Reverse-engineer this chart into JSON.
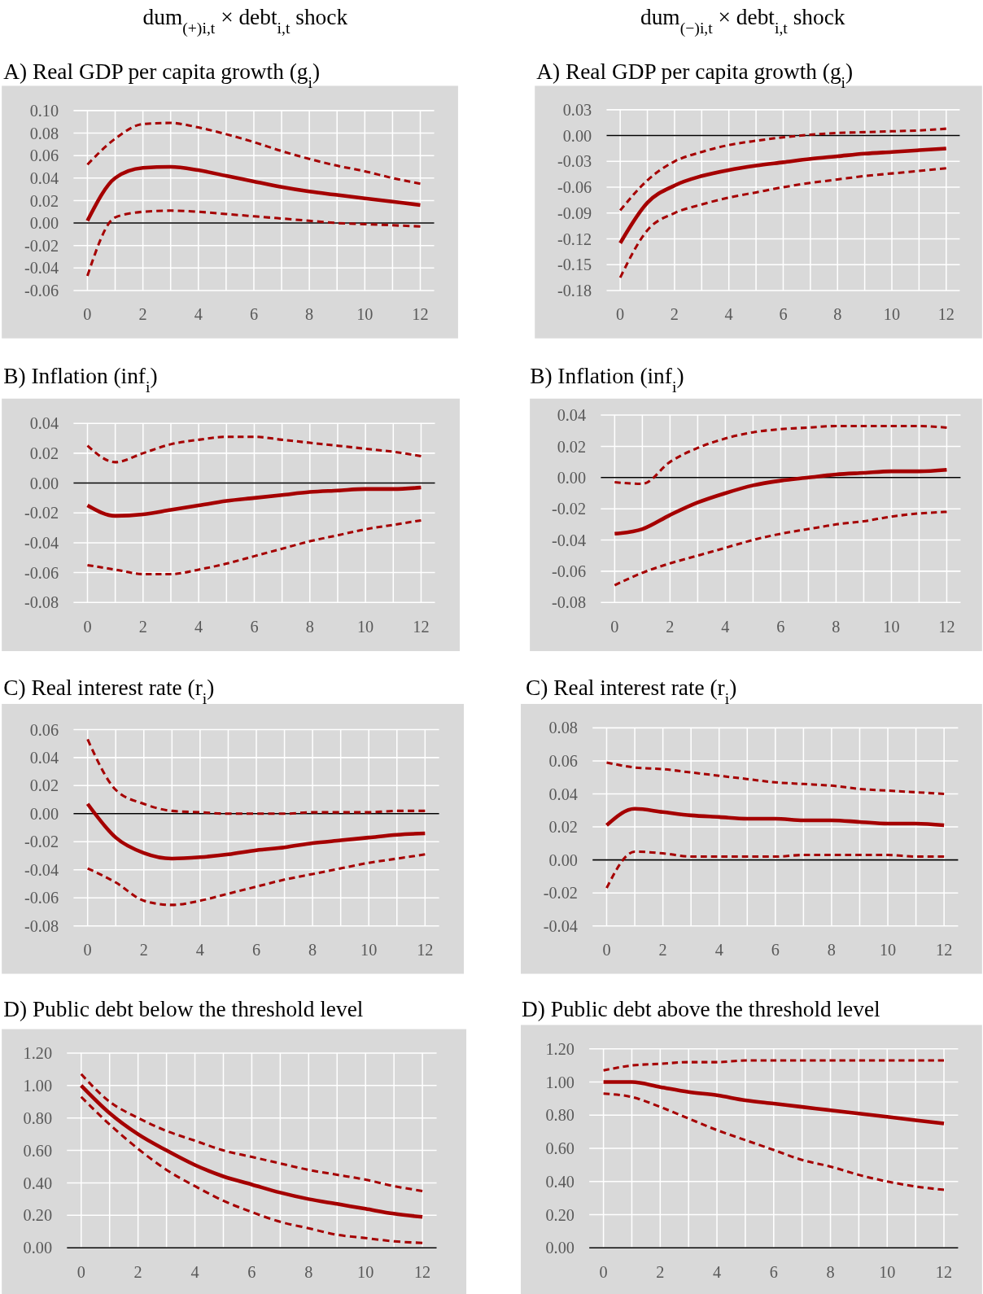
{
  "chart_data": [
    {
      "type": "line",
      "title": "A) Real GDP per capita growth (g$_{i}$)",
      "annotations": [
        "dum$_{(+)i,t}$ × debt$_{i,t}$ shock"
      ],
      "x": [
        0,
        1,
        2,
        3,
        4,
        5,
        6,
        7,
        8,
        9,
        10,
        11,
        12
      ],
      "xlim": [
        -0.5,
        12.5
      ],
      "xticks": [
        0,
        {
          "value": 1,
          "label": null
        },
        2,
        {
          "value": 3,
          "label": null
        },
        4,
        {
          "value": 5,
          "label": null
        },
        6,
        {
          "value": 7,
          "label": null
        },
        8,
        {
          "value": 9,
          "label": null
        },
        10,
        {
          "value": 11,
          "label": null
        },
        12
      ],
      "ylim": [
        -0.06,
        0.1
      ],
      "yticks": [
        {
          "value": -0.06,
          "label": "-0.06"
        },
        {
          "value": -0.04,
          "label": "-0.04"
        },
        {
          "value": -0.02,
          "label": "-0.02"
        },
        {
          "value": 0,
          "label": "0.00"
        },
        {
          "value": 0.02,
          "label": "0.02"
        },
        {
          "value": 0.04,
          "label": "0.04"
        },
        {
          "value": 0.06,
          "label": "0.06"
        },
        {
          "value": 0.08,
          "label": "0.08"
        },
        {
          "value": 0.1,
          "label": "0.10"
        }
      ],
      "grid": true,
      "series": [
        {
          "color": "#a50000",
          "line_style": "solid",
          "values": [
            0.002,
            0.04,
            0.049,
            0.05,
            0.047,
            0.042,
            0.037,
            0.032,
            0.028,
            0.025,
            0.022,
            0.019,
            0.016
          ]
        },
        {
          "color": "#a50000",
          "line_style": "dashed",
          "values": [
            0.052,
            0.075,
            0.088,
            0.089,
            0.085,
            0.079,
            0.072,
            0.064,
            0.057,
            0.051,
            0.046,
            0.04,
            0.035
          ]
        },
        {
          "color": "#a50000",
          "line_style": "dashed",
          "values": [
            -0.047,
            0.005,
            0.01,
            0.011,
            0.01,
            0.008,
            0.006,
            0.004,
            0.002,
            0.0,
            -0.001,
            -0.002,
            -0.003
          ]
        }
      ]
    },
    {
      "type": "line",
      "title": "A) Real GDP per capita growth (g$_{i}$)",
      "annotations": [
        "dum$_{(−)i,t}$ × debt$_{i,t}$ shock"
      ],
      "x": [
        0,
        1,
        2,
        3,
        4,
        5,
        6,
        7,
        8,
        9,
        10,
        11,
        12
      ],
      "xlim": [
        -0.5,
        12.5
      ],
      "xticks": [
        0,
        {
          "value": 1,
          "label": null
        },
        2,
        {
          "value": 3,
          "label": null
        },
        4,
        {
          "value": 5,
          "label": null
        },
        6,
        {
          "value": 7,
          "label": null
        },
        8,
        {
          "value": 9,
          "label": null
        },
        10,
        {
          "value": 11,
          "label": null
        },
        12
      ],
      "ylim": [
        -0.18,
        0.03
      ],
      "yticks": [
        {
          "value": -0.18,
          "label": "-0.18"
        },
        {
          "value": -0.15,
          "label": "-0.15"
        },
        {
          "value": -0.12,
          "label": "-0.12"
        },
        {
          "value": -0.09,
          "label": "-0.09"
        },
        {
          "value": -0.06,
          "label": "-0.06"
        },
        {
          "value": -0.03,
          "label": "-0.03"
        },
        {
          "value": 0,
          "label": "0.00"
        },
        {
          "value": 0.03,
          "label": "0.03"
        }
      ],
      "grid": true,
      "series": [
        {
          "color": "#a50000",
          "line_style": "solid",
          "values": [
            -0.125,
            -0.078,
            -0.058,
            -0.047,
            -0.04,
            -0.035,
            -0.031,
            -0.027,
            -0.024,
            -0.021,
            -0.019,
            -0.017,
            -0.015
          ]
        },
        {
          "color": "#a50000",
          "line_style": "dashed",
          "values": [
            -0.087,
            -0.052,
            -0.03,
            -0.019,
            -0.011,
            -0.006,
            -0.002,
            0.001,
            0.003,
            0.004,
            0.005,
            0.006,
            0.008
          ]
        },
        {
          "color": "#a50000",
          "line_style": "dashed",
          "values": [
            -0.165,
            -0.11,
            -0.09,
            -0.08,
            -0.072,
            -0.066,
            -0.06,
            -0.055,
            -0.051,
            -0.047,
            -0.044,
            -0.041,
            -0.038
          ]
        }
      ]
    },
    {
      "type": "line",
      "title": "B) Inflation (inf$_{i}$)",
      "x": [
        0,
        1,
        2,
        3,
        4,
        5,
        6,
        7,
        8,
        9,
        10,
        11,
        12
      ],
      "xlim": [
        -0.5,
        12.5
      ],
      "xticks": [
        0,
        {
          "value": 1,
          "label": null
        },
        2,
        {
          "value": 3,
          "label": null
        },
        4,
        {
          "value": 5,
          "label": null
        },
        6,
        {
          "value": 7,
          "label": null
        },
        8,
        {
          "value": 9,
          "label": null
        },
        10,
        {
          "value": 11,
          "label": null
        },
        12
      ],
      "ylim": [
        -0.08,
        0.04
      ],
      "yticks": [
        {
          "value": -0.08,
          "label": "-0.08"
        },
        {
          "value": -0.06,
          "label": "-0.06"
        },
        {
          "value": -0.04,
          "label": "-0.04"
        },
        {
          "value": -0.02,
          "label": "-0.02"
        },
        {
          "value": 0,
          "label": "0.00"
        },
        {
          "value": 0.02,
          "label": "0.02"
        },
        {
          "value": 0.04,
          "label": "0.04"
        }
      ],
      "grid": true,
      "series": [
        {
          "color": "#a50000",
          "line_style": "solid",
          "values": [
            -0.015,
            -0.022,
            -0.021,
            -0.018,
            -0.015,
            -0.012,
            -0.01,
            -0.008,
            -0.006,
            -0.005,
            -0.004,
            -0.004,
            -0.003
          ]
        },
        {
          "color": "#a50000",
          "line_style": "dashed",
          "values": [
            0.025,
            0.014,
            0.02,
            0.026,
            0.029,
            0.031,
            0.031,
            0.029,
            0.027,
            0.025,
            0.023,
            0.021,
            0.018
          ]
        },
        {
          "color": "#a50000",
          "line_style": "dashed",
          "values": [
            -0.055,
            -0.058,
            -0.061,
            -0.061,
            -0.058,
            -0.054,
            -0.049,
            -0.044,
            -0.039,
            -0.035,
            -0.031,
            -0.028,
            -0.025
          ]
        }
      ]
    },
    {
      "type": "line",
      "title": "B) Inflation (inf$_{i}$)",
      "x": [
        0,
        1,
        2,
        3,
        4,
        5,
        6,
        7,
        8,
        9,
        10,
        11,
        12
      ],
      "xlim": [
        -0.5,
        12.5
      ],
      "xticks": [
        0,
        {
          "value": 1,
          "label": null
        },
        2,
        {
          "value": 3,
          "label": null
        },
        4,
        {
          "value": 5,
          "label": null
        },
        6,
        {
          "value": 7,
          "label": null
        },
        8,
        {
          "value": 9,
          "label": null
        },
        10,
        {
          "value": 11,
          "label": null
        },
        12
      ],
      "ylim": [
        -0.08,
        0.04
      ],
      "yticks": [
        {
          "value": -0.08,
          "label": "-0.08"
        },
        {
          "value": -0.06,
          "label": "-0.06"
        },
        {
          "value": -0.04,
          "label": "-0.04"
        },
        {
          "value": -0.02,
          "label": "-0.02"
        },
        {
          "value": 0,
          "label": "0.00"
        },
        {
          "value": 0.02,
          "label": "0.02"
        },
        {
          "value": 0.04,
          "label": "0.04"
        }
      ],
      "grid": true,
      "series": [
        {
          "color": "#a50000",
          "line_style": "solid",
          "values": [
            -0.036,
            -0.033,
            -0.024,
            -0.016,
            -0.01,
            -0.005,
            -0.002,
            0.0,
            0.002,
            0.003,
            0.004,
            0.004,
            0.005
          ]
        },
        {
          "color": "#a50000",
          "line_style": "dashed",
          "values": [
            -0.003,
            -0.004,
            0.01,
            0.019,
            0.025,
            0.029,
            0.031,
            0.032,
            0.033,
            0.033,
            0.033,
            0.033,
            0.032
          ]
        },
        {
          "color": "#a50000",
          "line_style": "dashed",
          "values": [
            -0.069,
            -0.061,
            -0.055,
            -0.05,
            -0.045,
            -0.04,
            -0.036,
            -0.033,
            -0.03,
            -0.028,
            -0.025,
            -0.023,
            -0.022
          ]
        }
      ]
    },
    {
      "type": "line",
      "title": "C) Real interest rate (r$_{i}$)",
      "x": [
        0,
        1,
        2,
        3,
        4,
        5,
        6,
        7,
        8,
        9,
        10,
        11,
        12
      ],
      "xlim": [
        -0.5,
        12.5
      ],
      "xticks": [
        0,
        {
          "value": 1,
          "label": null
        },
        2,
        {
          "value": 3,
          "label": null
        },
        4,
        {
          "value": 5,
          "label": null
        },
        6,
        {
          "value": 7,
          "label": null
        },
        8,
        {
          "value": 9,
          "label": null
        },
        10,
        {
          "value": 11,
          "label": null
        },
        12
      ],
      "ylim": [
        -0.08,
        0.06
      ],
      "yticks": [
        {
          "value": -0.08,
          "label": "-0.08"
        },
        {
          "value": -0.06,
          "label": "-0.06"
        },
        {
          "value": -0.04,
          "label": "-0.04"
        },
        {
          "value": -0.02,
          "label": "-0.02"
        },
        {
          "value": 0,
          "label": "0.00"
        },
        {
          "value": 0.02,
          "label": "0.02"
        },
        {
          "value": 0.04,
          "label": "0.04"
        },
        {
          "value": 0.06,
          "label": "0.06"
        }
      ],
      "grid": true,
      "series": [
        {
          "color": "#a50000",
          "line_style": "solid",
          "values": [
            0.007,
            -0.017,
            -0.028,
            -0.032,
            -0.031,
            -0.029,
            -0.026,
            -0.024,
            -0.021,
            -0.019,
            -0.017,
            -0.015,
            -0.014
          ]
        },
        {
          "color": "#a50000",
          "line_style": "dashed",
          "values": [
            0.053,
            0.017,
            0.007,
            0.002,
            0.001,
            0.0,
            0.0,
            0.0,
            0.001,
            0.001,
            0.001,
            0.002,
            0.002
          ]
        },
        {
          "color": "#a50000",
          "line_style": "dashed",
          "values": [
            -0.039,
            -0.049,
            -0.062,
            -0.065,
            -0.062,
            -0.057,
            -0.052,
            -0.047,
            -0.043,
            -0.039,
            -0.035,
            -0.032,
            -0.029
          ]
        }
      ]
    },
    {
      "type": "line",
      "title": "C) Real interest rate (r$_{i}$)",
      "x": [
        0,
        1,
        2,
        3,
        4,
        5,
        6,
        7,
        8,
        9,
        10,
        11,
        12
      ],
      "xlim": [
        -0.5,
        12.5
      ],
      "xticks": [
        0,
        {
          "value": 1,
          "label": null
        },
        2,
        {
          "value": 3,
          "label": null
        },
        4,
        {
          "value": 5,
          "label": null
        },
        6,
        {
          "value": 7,
          "label": null
        },
        8,
        {
          "value": 9,
          "label": null
        },
        10,
        {
          "value": 11,
          "label": null
        },
        12
      ],
      "ylim": [
        -0.04,
        0.08
      ],
      "yticks": [
        {
          "value": -0.04,
          "label": "-0.04"
        },
        {
          "value": -0.02,
          "label": "-0.02"
        },
        {
          "value": 0,
          "label": "0.00"
        },
        {
          "value": 0.02,
          "label": "0.02"
        },
        {
          "value": 0.04,
          "label": "0.04"
        },
        {
          "value": 0.06,
          "label": "0.06"
        },
        {
          "value": 0.08,
          "label": "0.08"
        }
      ],
      "grid": true,
      "series": [
        {
          "color": "#a50000",
          "line_style": "solid",
          "values": [
            0.021,
            0.031,
            0.029,
            0.027,
            0.026,
            0.025,
            0.025,
            0.024,
            0.024,
            0.023,
            0.022,
            0.022,
            0.021
          ]
        },
        {
          "color": "#a50000",
          "line_style": "dashed",
          "values": [
            0.059,
            0.056,
            0.055,
            0.053,
            0.051,
            0.049,
            0.047,
            0.046,
            0.045,
            0.043,
            0.042,
            0.041,
            0.04
          ]
        },
        {
          "color": "#a50000",
          "line_style": "dashed",
          "values": [
            -0.017,
            0.005,
            0.004,
            0.002,
            0.002,
            0.002,
            0.002,
            0.003,
            0.003,
            0.003,
            0.003,
            0.002,
            0.002
          ]
        }
      ]
    },
    {
      "type": "line",
      "title": "D) Public debt below the threshold level",
      "x": [
        0,
        1,
        2,
        3,
        4,
        5,
        6,
        7,
        8,
        9,
        10,
        11,
        12
      ],
      "xlim": [
        -0.5,
        12.5
      ],
      "xticks": [
        0,
        {
          "value": 1,
          "label": null
        },
        2,
        {
          "value": 3,
          "label": null
        },
        4,
        {
          "value": 5,
          "label": null
        },
        6,
        {
          "value": 7,
          "label": null
        },
        8,
        {
          "value": 9,
          "label": null
        },
        10,
        {
          "value": 11,
          "label": null
        },
        12
      ],
      "ylim": [
        0,
        1.2
      ],
      "yticks": [
        {
          "value": 0,
          "label": "0.00"
        },
        {
          "value": 0.2,
          "label": "0.20"
        },
        {
          "value": 0.4,
          "label": "0.40"
        },
        {
          "value": 0.6,
          "label": "0.60"
        },
        {
          "value": 0.8,
          "label": "0.80"
        },
        {
          "value": 1,
          "label": "1.00"
        },
        {
          "value": 1.2,
          "label": "1.20"
        }
      ],
      "grid": true,
      "series": [
        {
          "color": "#a50000",
          "line_style": "solid",
          "values": [
            1.0,
            0.83,
            0.7,
            0.6,
            0.51,
            0.44,
            0.39,
            0.34,
            0.3,
            0.27,
            0.24,
            0.21,
            0.19
          ]
        },
        {
          "color": "#a50000",
          "line_style": "dashed",
          "values": [
            1.07,
            0.9,
            0.8,
            0.72,
            0.66,
            0.6,
            0.56,
            0.52,
            0.48,
            0.45,
            0.42,
            0.38,
            0.35
          ]
        },
        {
          "color": "#a50000",
          "line_style": "dashed",
          "values": [
            0.93,
            0.76,
            0.61,
            0.48,
            0.38,
            0.29,
            0.22,
            0.16,
            0.12,
            0.08,
            0.06,
            0.04,
            0.03
          ]
        }
      ]
    },
    {
      "type": "line",
      "title": "D) Public debt above the threshold level",
      "x": [
        0,
        1,
        2,
        3,
        4,
        5,
        6,
        7,
        8,
        9,
        10,
        11,
        12
      ],
      "xlim": [
        -0.5,
        12.5
      ],
      "xticks": [
        0,
        {
          "value": 1,
          "label": null
        },
        2,
        {
          "value": 3,
          "label": null
        },
        4,
        {
          "value": 5,
          "label": null
        },
        6,
        {
          "value": 7,
          "label": null
        },
        8,
        {
          "value": 9,
          "label": null
        },
        10,
        {
          "value": 11,
          "label": null
        },
        12
      ],
      "ylim": [
        0,
        1.2
      ],
      "yticks": [
        {
          "value": 0,
          "label": "0.00"
        },
        {
          "value": 0.2,
          "label": "0.20"
        },
        {
          "value": 0.4,
          "label": "0.40"
        },
        {
          "value": 0.6,
          "label": "0.60"
        },
        {
          "value": 0.8,
          "label": "0.80"
        },
        {
          "value": 1,
          "label": "1.00"
        },
        {
          "value": 1.2,
          "label": "1.20"
        }
      ],
      "grid": true,
      "series": [
        {
          "color": "#a50000",
          "line_style": "solid",
          "values": [
            1.0,
            1.0,
            0.97,
            0.94,
            0.92,
            0.89,
            0.87,
            0.85,
            0.83,
            0.81,
            0.79,
            0.77,
            0.75
          ]
        },
        {
          "color": "#a50000",
          "line_style": "dashed",
          "values": [
            1.07,
            1.1,
            1.11,
            1.12,
            1.12,
            1.13,
            1.13,
            1.13,
            1.13,
            1.13,
            1.13,
            1.13,
            1.13
          ]
        },
        {
          "color": "#a50000",
          "line_style": "dashed",
          "values": [
            0.93,
            0.91,
            0.85,
            0.78,
            0.71,
            0.65,
            0.59,
            0.53,
            0.49,
            0.44,
            0.4,
            0.37,
            0.35
          ]
        }
      ]
    }
  ]
}
